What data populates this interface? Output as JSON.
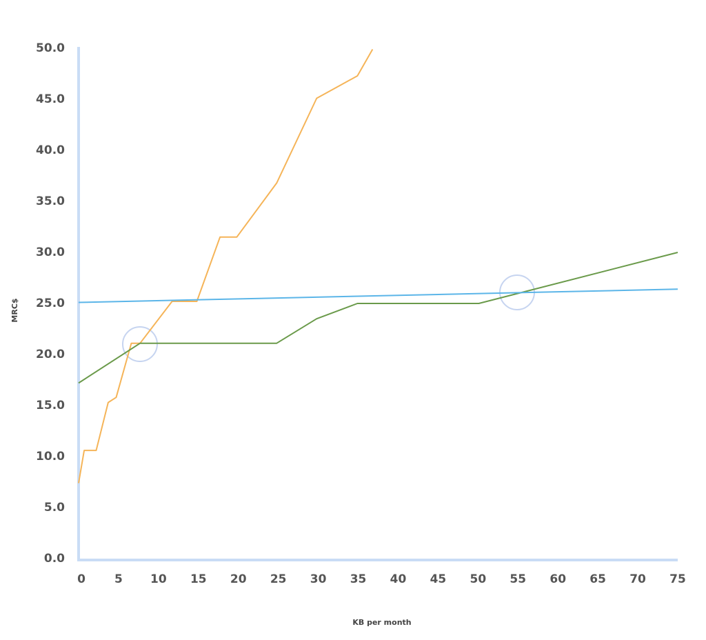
{
  "chart_data": {
    "type": "line",
    "x_label": "KB per month",
    "y_label": "MRC$",
    "xlim": [
      0,
      75
    ],
    "ylim": [
      0,
      50
    ],
    "xticks": [
      0,
      5,
      10,
      15,
      20,
      25,
      30,
      35,
      40,
      45,
      50,
      55,
      60,
      65,
      70,
      75
    ],
    "yticks": [
      {
        "value": 0,
        "label": "0.0"
      },
      {
        "value": 5,
        "label": "5.0"
      },
      {
        "value": 10,
        "label": "10.0"
      },
      {
        "value": 15,
        "label": "15.0"
      },
      {
        "value": 20,
        "label": "20.0"
      },
      {
        "value": 25,
        "label": "25.0"
      },
      {
        "value": 30,
        "label": "30.0"
      },
      {
        "value": 35,
        "label": "35.0"
      },
      {
        "value": 40,
        "label": "40.0"
      },
      {
        "value": 45,
        "label": "45.0"
      },
      {
        "value": 50,
        "label": "50.0"
      }
    ],
    "grid": false,
    "series": [
      {
        "color": "#f5b458",
        "x": [
          0,
          0.7,
          2.2,
          3.7,
          4.7,
          6.6,
          7.7,
          11.7,
          14.8,
          17.7,
          19.8,
          24.8,
          29.8,
          34.9,
          36.8
        ],
        "values": [
          7.4,
          10.6,
          10.6,
          15.3,
          15.8,
          21.1,
          21.1,
          25.2,
          25.2,
          31.5,
          31.5,
          36.8,
          45.1,
          47.3,
          49.9
        ]
      },
      {
        "color": "#6a9a4a",
        "x": [
          0,
          7.7,
          24.8,
          29.8,
          34.9,
          50.1,
          75
        ],
        "values": [
          17.2,
          21.1,
          21.1,
          23.5,
          25.0,
          25.0,
          30.0
        ]
      },
      {
        "color": "#5bb5e8",
        "x": [
          0,
          75
        ],
        "values": [
          25.1,
          26.4
        ]
      }
    ]
  }
}
